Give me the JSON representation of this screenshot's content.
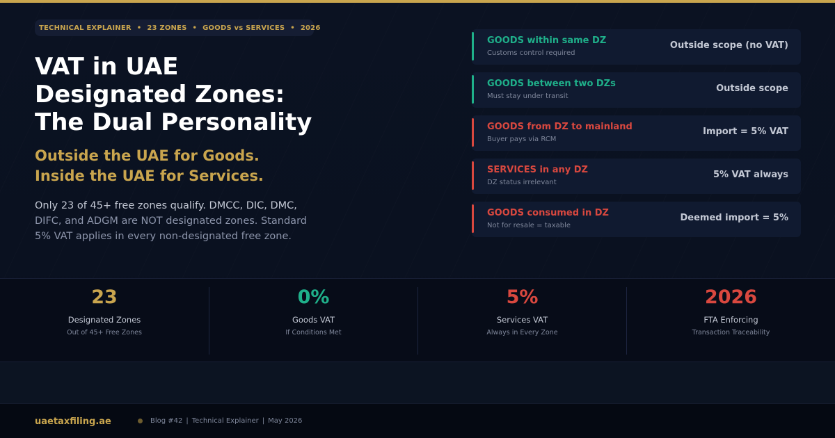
{
  "header": {
    "tags": [
      "TECHNICAL EXPLAINER",
      "23 ZONES",
      "GOODS vs SERVICES",
      "2026"
    ],
    "separator": "•",
    "title_lines": [
      "VAT in UAE",
      "Designated Zones:",
      "The Dual Personality"
    ],
    "subtitle_lines": [
      "Outside the UAE for Goods.",
      "Inside the UAE for Services."
    ],
    "body_lines": [
      "Only 23 of 45+ free zones qualify. DMCC, DIC, DMC,",
      "DIFC, and ADGM are NOT designated zones. Standard",
      "5% VAT applies in every non-designated free zone."
    ]
  },
  "cards": [
    {
      "title": "GOODS within same DZ",
      "sub": "Customs control required",
      "value": "Outside scope (no VAT)",
      "status": "green"
    },
    {
      "title": "GOODS between two DZs",
      "sub": "Must stay under transit",
      "value": "Outside scope",
      "status": "green"
    },
    {
      "title": "GOODS from DZ to mainland",
      "sub": "Buyer pays via RCM",
      "value": "Import = 5% VAT",
      "status": "red"
    },
    {
      "title": "SERVICES in any DZ",
      "sub": "DZ status irrelevant",
      "value": "5% VAT always",
      "status": "red"
    },
    {
      "title": "GOODS consumed in DZ",
      "sub": "Not for resale = taxable",
      "value": "Deemed import = 5%",
      "status": "red"
    }
  ],
  "stats": [
    {
      "value": "23",
      "label": "Designated Zones",
      "sub": "Out of 45+ Free Zones",
      "color": "#c9a54e"
    },
    {
      "value": "0%",
      "label": "Goods VAT",
      "sub": "If Conditions Met",
      "color": "#1fb08a"
    },
    {
      "value": "5%",
      "label": "Services VAT",
      "sub": "Always in Every Zone",
      "color": "#d9483f"
    },
    {
      "value": "2026",
      "label": "FTA Enforcing",
      "sub": "Transaction Traceability",
      "color": "#d9483f"
    }
  ],
  "footer": {
    "site": "uaetaxfiling.ae",
    "meta": [
      "Blog #42",
      "Technical Explainer",
      "May 2026"
    ],
    "meta_separator": "|"
  },
  "colors": {
    "accent_gold": "#c9a54e",
    "green": "#1fb08a",
    "red": "#d9483f",
    "background": "#0a1020"
  }
}
